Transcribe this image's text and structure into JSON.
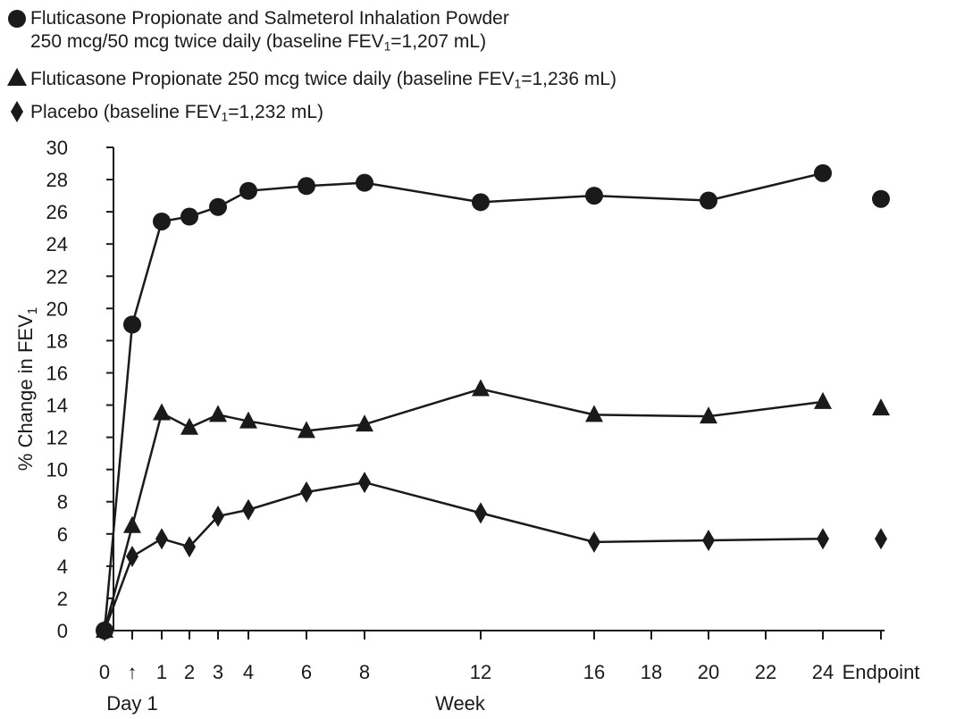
{
  "legend": {
    "items": [
      {
        "marker": "circle",
        "line1": "Fluticasone Propionate and Salmeterol Inhalation Powder",
        "line2_pre": "250 mcg/50 mcg twice daily (baseline FEV",
        "sub": "1",
        "line2_post": "=1,207 mL)"
      },
      {
        "marker": "triangle",
        "pre": "Fluticasone Propionate 250 mcg twice daily (baseline FEV",
        "sub": "1",
        "post": "=1,236 mL)"
      },
      {
        "marker": "diamond",
        "pre": "Placebo (baseline FEV",
        "sub": "1",
        "post": "=1,232 mL)"
      }
    ]
  },
  "chart_data": {
    "type": "line",
    "ylabel": "% Change in FEV",
    "ylabel_sub": "1",
    "xlabel": "Week",
    "x_extra_label": "Day 1",
    "ylim": [
      0,
      30
    ],
    "yticks": [
      0,
      2,
      4,
      6,
      8,
      10,
      12,
      14,
      16,
      18,
      20,
      22,
      24,
      26,
      28,
      30
    ],
    "xticks": [
      {
        "label": "0",
        "x": "0"
      },
      {
        "label": "↑",
        "x": "day1"
      },
      {
        "label": "1",
        "x": "1"
      },
      {
        "label": "2",
        "x": "2"
      },
      {
        "label": "3",
        "x": "3"
      },
      {
        "label": "4",
        "x": "4"
      },
      {
        "label": "6",
        "x": "6"
      },
      {
        "label": "8",
        "x": "8"
      },
      {
        "label": "12",
        "x": "12"
      },
      {
        "label": "16",
        "x": "16"
      },
      {
        "label": "18",
        "x": "18"
      },
      {
        "label": "20",
        "x": "20"
      },
      {
        "label": "22",
        "x": "22"
      },
      {
        "label": "24",
        "x": "24"
      },
      {
        "label": "Endpoint",
        "x": "endpoint"
      }
    ],
    "series": [
      {
        "marker": "circle",
        "points": [
          [
            "0",
            0
          ],
          [
            "day1",
            19
          ],
          [
            "1",
            25.4
          ],
          [
            "2",
            25.7
          ],
          [
            "3",
            26.3
          ],
          [
            "4",
            27.3
          ],
          [
            "6",
            27.6
          ],
          [
            "8",
            27.8
          ],
          [
            "12",
            26.6
          ],
          [
            "16",
            27
          ],
          [
            "20",
            26.7
          ],
          [
            "24",
            28.4
          ]
        ],
        "endpoint": 26.8
      },
      {
        "marker": "triangle",
        "points": [
          [
            "0",
            0
          ],
          [
            "day1",
            6.5
          ],
          [
            "1",
            13.5
          ],
          [
            "2",
            12.6
          ],
          [
            "3",
            13.4
          ],
          [
            "4",
            13
          ],
          [
            "6",
            12.4
          ],
          [
            "8",
            12.8
          ],
          [
            "12",
            15
          ],
          [
            "16",
            13.4
          ],
          [
            "20",
            13.3
          ],
          [
            "24",
            14.2
          ]
        ],
        "endpoint": 13.8
      },
      {
        "marker": "diamond",
        "points": [
          [
            "0",
            0
          ],
          [
            "day1",
            4.6
          ],
          [
            "1",
            5.7
          ],
          [
            "2",
            5.2
          ],
          [
            "3",
            7.1
          ],
          [
            "4",
            7.5
          ],
          [
            "6",
            8.6
          ],
          [
            "8",
            9.2
          ],
          [
            "12",
            7.3
          ],
          [
            "16",
            5.5
          ],
          [
            "20",
            5.6
          ],
          [
            "24",
            5.7
          ]
        ],
        "endpoint": 5.7
      }
    ],
    "grid": false,
    "legend_position": "top-left"
  }
}
